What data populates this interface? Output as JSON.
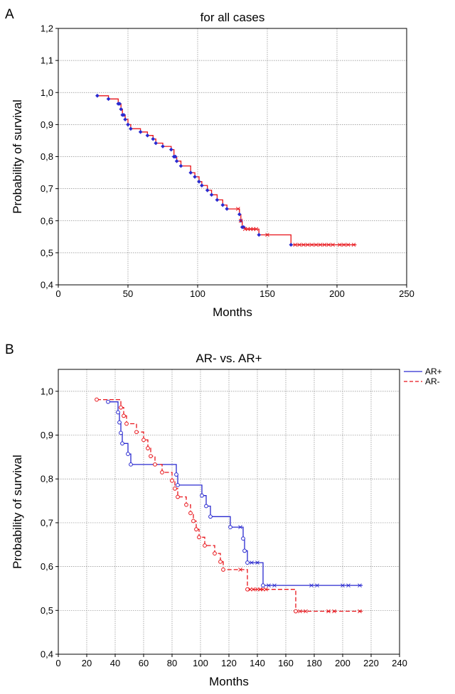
{
  "colors": {
    "red": "#e8141a",
    "blue": "#2a2ad0"
  },
  "chart_data": [
    {
      "panel": "A",
      "type": "line",
      "subtype": "kaplan-meier",
      "title": "for all cases",
      "xlabel": "Months",
      "ylabel": "Probability of survival",
      "xlim": [
        0,
        250
      ],
      "ylim": [
        0.4,
        1.2
      ],
      "xticks": [
        "0",
        "50",
        "100",
        "150",
        "200",
        "250"
      ],
      "yticks": [
        "0,4",
        "0,5",
        "0,6",
        "0,7",
        "0,8",
        "0,9",
        "1,0",
        "1,1",
        "1,2"
      ],
      "xtick_values": [
        0,
        50,
        100,
        150,
        200,
        250
      ],
      "ytick_values": [
        0.4,
        0.5,
        0.6,
        0.7,
        0.8,
        0.9,
        1.0,
        1.1,
        1.2
      ],
      "grid": true,
      "series": [
        {
          "color": "red",
          "style": "solid",
          "steps": [
            [
              28,
              0.99
            ],
            [
              36,
              0.98
            ],
            [
              43,
              0.965
            ],
            [
              45,
              0.948
            ],
            [
              46,
              0.93
            ],
            [
              48,
              0.916
            ],
            [
              50,
              0.9
            ],
            [
              52,
              0.887
            ],
            [
              59,
              0.877
            ],
            [
              64,
              0.866
            ],
            [
              68,
              0.855
            ],
            [
              70,
              0.842
            ],
            [
              75,
              0.832
            ],
            [
              81,
              0.822
            ],
            [
              83,
              0.8
            ],
            [
              85,
              0.786
            ],
            [
              88,
              0.771
            ],
            [
              95,
              0.75
            ],
            [
              98,
              0.737
            ],
            [
              101,
              0.722
            ],
            [
              103,
              0.71
            ],
            [
              107,
              0.695
            ],
            [
              110,
              0.681
            ],
            [
              114,
              0.665
            ],
            [
              118,
              0.649
            ],
            [
              121,
              0.637
            ],
            [
              130,
              0.62
            ],
            [
              131,
              0.6
            ],
            [
              132,
              0.58
            ],
            [
              134,
              0.574
            ],
            [
              144,
              0.556
            ],
            [
              167,
              0.525
            ],
            [
              214,
              0.525
            ]
          ],
          "events": [
            28,
            36,
            43,
            44,
            45,
            46,
            47,
            48,
            50,
            52,
            59,
            64,
            68,
            70,
            75,
            81,
            83,
            84,
            85,
            88,
            95,
            98,
            101,
            103,
            107,
            110,
            114,
            118,
            121,
            130,
            131,
            132,
            133,
            144,
            167
          ],
          "censored": [
            129,
            131,
            134,
            136,
            138,
            140,
            142,
            150,
            170,
            173,
            176,
            179,
            182,
            185,
            188,
            191,
            194,
            197,
            202,
            205,
            208,
            212
          ]
        }
      ]
    },
    {
      "panel": "B",
      "type": "line",
      "subtype": "kaplan-meier",
      "title": "AR- vs. AR+",
      "xlabel": "Months",
      "ylabel": "Probability of survival",
      "xlim": [
        0,
        240
      ],
      "ylim": [
        0.4,
        1.05
      ],
      "xticks": [
        "0",
        "20",
        "40",
        "60",
        "80",
        "100",
        "120",
        "140",
        "160",
        "180",
        "200",
        "220",
        "240"
      ],
      "yticks": [
        "0,4",
        "0,5",
        "0,6",
        "0,7",
        "0,8",
        "0,9",
        "1,0"
      ],
      "xtick_values": [
        0,
        20,
        40,
        60,
        80,
        100,
        120,
        140,
        160,
        180,
        200,
        220,
        240
      ],
      "ytick_values": [
        0.4,
        0.5,
        0.6,
        0.7,
        0.8,
        0.9,
        1.0
      ],
      "grid": true,
      "legend_position": "top-right, outside",
      "series": [
        {
          "name": "AR+",
          "color": "blue",
          "style": "solid",
          "steps": [
            [
              35,
              0.976
            ],
            [
              42,
              0.952
            ],
            [
              43,
              0.929
            ],
            [
              44,
              0.905
            ],
            [
              45,
              0.881
            ],
            [
              49,
              0.857
            ],
            [
              51,
              0.833
            ],
            [
              83,
              0.81
            ],
            [
              84,
              0.786
            ],
            [
              101,
              0.762
            ],
            [
              104,
              0.738
            ],
            [
              107,
              0.714
            ],
            [
              121,
              0.69
            ],
            [
              130,
              0.664
            ],
            [
              131,
              0.636
            ],
            [
              133,
              0.609
            ],
            [
              144,
              0.557
            ],
            [
              214,
              0.557
            ]
          ],
          "events": [
            35,
            42,
            43,
            44,
            45,
            49,
            51,
            83,
            84,
            101,
            104,
            107,
            121,
            130,
            131,
            133,
            144
          ],
          "censored": [
            128,
            136,
            140,
            148,
            152,
            178,
            182,
            200,
            204,
            212
          ]
        },
        {
          "name": "AR-",
          "color": "red",
          "style": "dashed",
          "steps": [
            [
              27,
              0.981
            ],
            [
              44,
              0.963
            ],
            [
              46,
              0.944
            ],
            [
              48,
              0.926
            ],
            [
              55,
              0.907
            ],
            [
              60,
              0.889
            ],
            [
              63,
              0.87
            ],
            [
              65,
              0.852
            ],
            [
              68,
              0.833
            ],
            [
              73,
              0.815
            ],
            [
              80,
              0.796
            ],
            [
              82,
              0.778
            ],
            [
              84,
              0.759
            ],
            [
              90,
              0.741
            ],
            [
              93,
              0.722
            ],
            [
              95,
              0.704
            ],
            [
              97,
              0.685
            ],
            [
              99,
              0.667
            ],
            [
              103,
              0.648
            ],
            [
              110,
              0.63
            ],
            [
              114,
              0.611
            ],
            [
              116,
              0.593
            ],
            [
              133,
              0.548
            ],
            [
              167,
              0.498
            ],
            [
              214,
              0.498
            ]
          ],
          "events": [
            27,
            44,
            46,
            48,
            55,
            60,
            63,
            65,
            68,
            73,
            80,
            82,
            84,
            90,
            93,
            95,
            97,
            99,
            103,
            110,
            114,
            116,
            133,
            167
          ],
          "censored": [
            128,
            135,
            137,
            140,
            142,
            144,
            146,
            170,
            174,
            190,
            194,
            212
          ]
        }
      ]
    }
  ]
}
